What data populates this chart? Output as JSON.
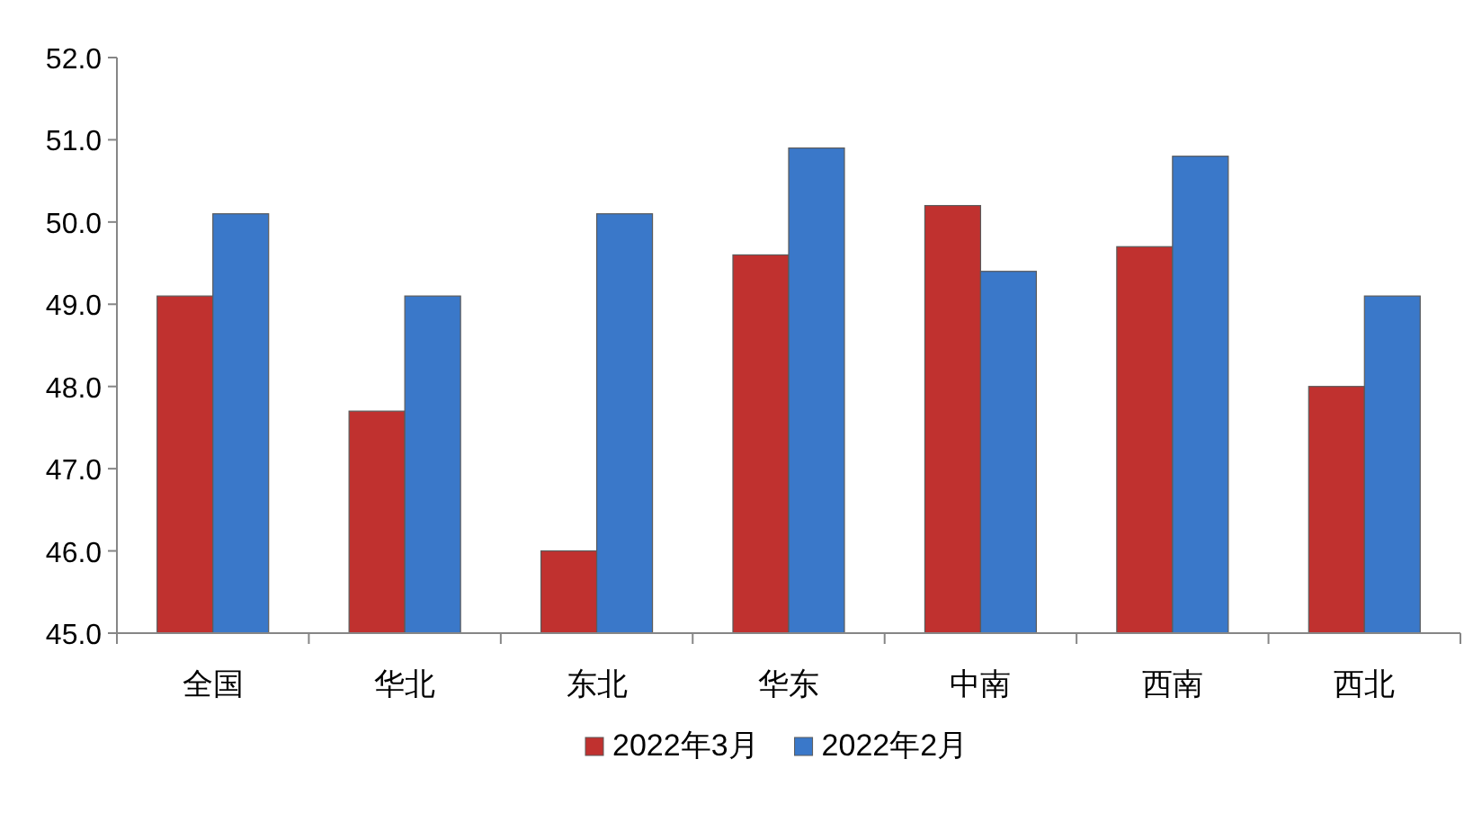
{
  "chart_data": {
    "type": "bar",
    "categories": [
      "全国",
      "华北",
      "东北",
      "华东",
      "中南",
      "西南",
      "西北"
    ],
    "series": [
      {
        "name": "2022年3月",
        "color": "#c0312f",
        "values": [
          49.1,
          47.7,
          46.0,
          49.6,
          50.2,
          49.7,
          48.0
        ]
      },
      {
        "name": "2022年2月",
        "color": "#3a78c9",
        "values": [
          50.1,
          49.1,
          50.1,
          50.9,
          49.4,
          50.8,
          49.1
        ]
      }
    ],
    "ylim": [
      45,
      52
    ],
    "yticks": [
      {
        "value": 45,
        "label": "45.0"
      },
      {
        "value": 46,
        "label": "46.0"
      },
      {
        "value": 47,
        "label": "47.0"
      },
      {
        "value": 48,
        "label": "48.0"
      },
      {
        "value": 49,
        "label": "49.0"
      },
      {
        "value": 50,
        "label": "50.0"
      },
      {
        "value": 51,
        "label": "51.0"
      },
      {
        "value": 52,
        "label": "52.0"
      }
    ],
    "grid": false,
    "legend": "bottom"
  }
}
